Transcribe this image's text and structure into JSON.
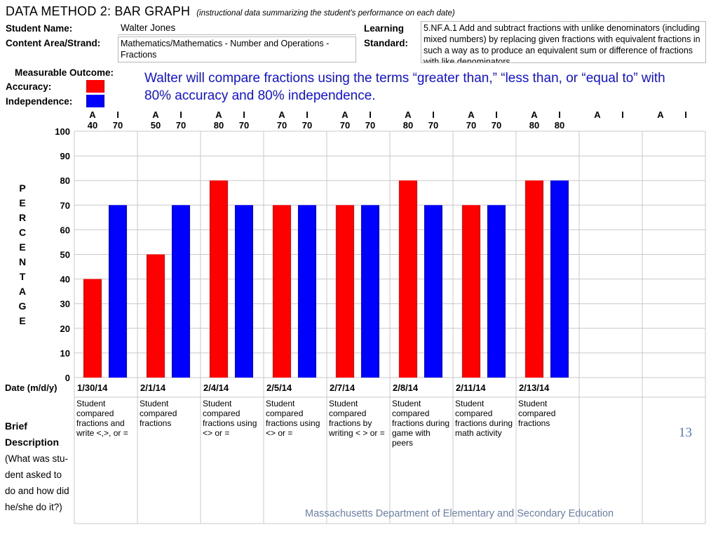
{
  "header": {
    "title": "DATA METHOD 2: BAR GRAPH",
    "subtitle": "(instructional data summarizing the student's performance on each date)",
    "student_name_label": "Student Name:",
    "student_name": "Walter Jones",
    "content_area_label": "Content Area/Strand:",
    "content_area": "Mathematics/Mathematics - Number and Operations - Fractions",
    "learning_label": "Learning",
    "standard_label": "Standard:",
    "standard_text": "5.NF.A.1 Add and subtract fractions with unlike denominators (including mixed numbers) by replacing given fractions with equivalent fractions in such a way as to produce an equivalent sum or difference of fractions with like denominators."
  },
  "outcome": {
    "measurable_label": "Measurable Outcome:",
    "accuracy_label": "Accuracy:",
    "independence_label": "Independence:",
    "accuracy_color": "#ff0000",
    "independence_color": "#0000ff",
    "text": "Walter will compare fractions using the terms “greater than,” “less than, or “equal to” with 80% accuracy and 80% independence."
  },
  "chart_data": {
    "type": "bar",
    "ylabel": "PERCENTAGE",
    "xlabel": "Date (m/d/y)",
    "ylim": [
      0,
      100
    ],
    "yticks": [
      0,
      10,
      20,
      30,
      40,
      50,
      60,
      70,
      80,
      90,
      100
    ],
    "column_header_a": "A",
    "column_header_i": "I",
    "categories": [
      "1/30/14",
      "2/1/14",
      "2/4/14",
      "2/5/14",
      "2/7/14",
      "2/8/14",
      "2/11/14",
      "2/13/14",
      "",
      ""
    ],
    "series": [
      {
        "name": "Accuracy",
        "color": "#ff0000",
        "values": [
          40,
          50,
          80,
          70,
          70,
          80,
          70,
          80,
          null,
          null
        ]
      },
      {
        "name": "Independence",
        "color": "#0000ff",
        "values": [
          70,
          70,
          70,
          70,
          70,
          70,
          70,
          80,
          null,
          null
        ]
      }
    ],
    "grid": true
  },
  "descriptions": [
    "Student compared fractions and write  <,>, or =",
    "Student compared fractions",
    "Student compared fractions using <> or =",
    "Student compared fractions using <> or =",
    "Student compared fractions by writing < > or =",
    "Student compared fractions during game with peers",
    "Student compared fractions during math activity",
    "Student compared fractions",
    "",
    ""
  ],
  "brief": {
    "line1": "Brief",
    "line2": "Description",
    "line3": "(What was stu-",
    "line4": "dent asked to",
    "line5": "do and how did",
    "line6": "he/she do it?)"
  },
  "page_number": "13",
  "footer": "Massachusetts Department of Elementary and Secondary Education"
}
